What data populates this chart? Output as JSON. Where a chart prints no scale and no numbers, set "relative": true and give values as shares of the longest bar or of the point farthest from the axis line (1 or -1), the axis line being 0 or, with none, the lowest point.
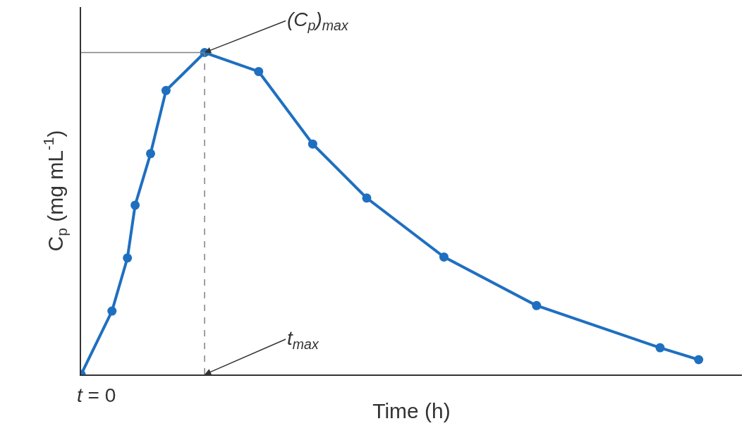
{
  "chart_data": {
    "type": "line",
    "relative": true,
    "xlabel": "Time (h)",
    "ylabel": "C$_{p}$ (mg mL$^{-1}$)",
    "grid": false,
    "marker": "circle",
    "line_style": "solid",
    "categories": [
      null,
      null,
      null,
      null,
      null,
      null,
      null,
      null,
      null,
      null,
      null,
      null,
      null,
      null,
      null,
      null,
      null,
      null,
      null,
      null,
      null,
      null,
      null,
      null,
      null,
      null,
      null,
      null,
      null,
      null,
      null,
      null,
      null,
      null,
      null,
      null,
      null,
      null,
      null,
      null,
      null,
      null,
      null,
      null,
      null,
      null,
      null,
      null,
      null,
      null,
      null,
      null,
      null,
      null,
      null,
      null,
      null,
      null,
      null,
      null,
      null,
      null,
      null,
      null,
      null,
      null,
      null,
      null,
      null,
      null,
      null,
      null,
      null,
      null,
      null,
      null,
      null,
      null,
      null,
      null,
      null
    ],
    "series": [
      {
        "color": "#1f6fc0",
        "values": [
          0,
          null,
          null,
          null,
          0.197,
          null,
          0.362,
          0.526,
          null,
          0.686,
          null,
          0.882,
          null,
          null,
          null,
          null,
          1,
          null,
          null,
          null,
          null,
          null,
          null,
          0.941,
          null,
          null,
          null,
          null,
          null,
          null,
          0.716,
          null,
          null,
          null,
          null,
          null,
          null,
          0.548,
          null,
          null,
          null,
          null,
          null,
          null,
          null,
          null,
          null,
          0.365,
          null,
          null,
          null,
          null,
          null,
          null,
          null,
          null,
          null,
          null,
          null,
          0.214,
          null,
          null,
          null,
          null,
          null,
          null,
          null,
          null,
          null,
          null,
          null,
          null,
          null,
          null,
          null,
          0.083,
          null,
          null,
          null,
          null,
          0.046
        ]
      }
    ],
    "ref_lines": [
      {
        "axis": "y",
        "value": 1,
        "color": "#808080",
        "line_style": "solid"
      },
      {
        "axis": "x",
        "color": "#808080",
        "line_style": "dashed"
      }
    ],
    "annotations": [
      "(C$_{p}$)$_{max}$",
      "t$_{max}$",
      "t = 0"
    ]
  }
}
